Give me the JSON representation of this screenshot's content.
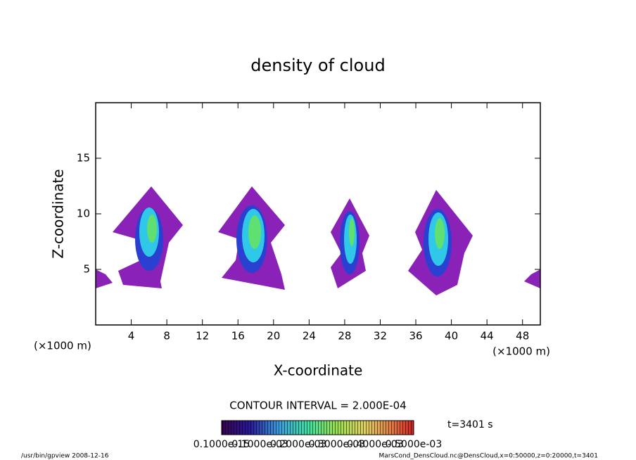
{
  "chart_data": {
    "type": "contour",
    "title": "density of cloud",
    "x_label": "X-coordinate",
    "y_label": "Z-coordinate",
    "x_unit": "(×1000 m)",
    "y_unit": "(×1000 m)",
    "xlim": [
      0,
      50
    ],
    "xticks": [
      4,
      8,
      12,
      16,
      20,
      24,
      28,
      32,
      36,
      40,
      44,
      48
    ],
    "ylim": [
      0,
      20
    ],
    "yticks": [
      5,
      10,
      15
    ],
    "contour_interval": "CONTOUR INTERVAL = 2.000E-04",
    "time_label": "t=3401 s",
    "colorbar_labels": [
      "0.1000e-15",
      "0.1000e-03",
      "0.2000e-03",
      "0.3000e-03",
      "0.4000e-03",
      "0.5000e-03"
    ],
    "footer_left": "/usr/bin/gpview   2008-12-16",
    "footer_right": "MarsCond_DensCloud.nc@DensCloud,x=0:50000,z=0:20000,t=3401"
  }
}
